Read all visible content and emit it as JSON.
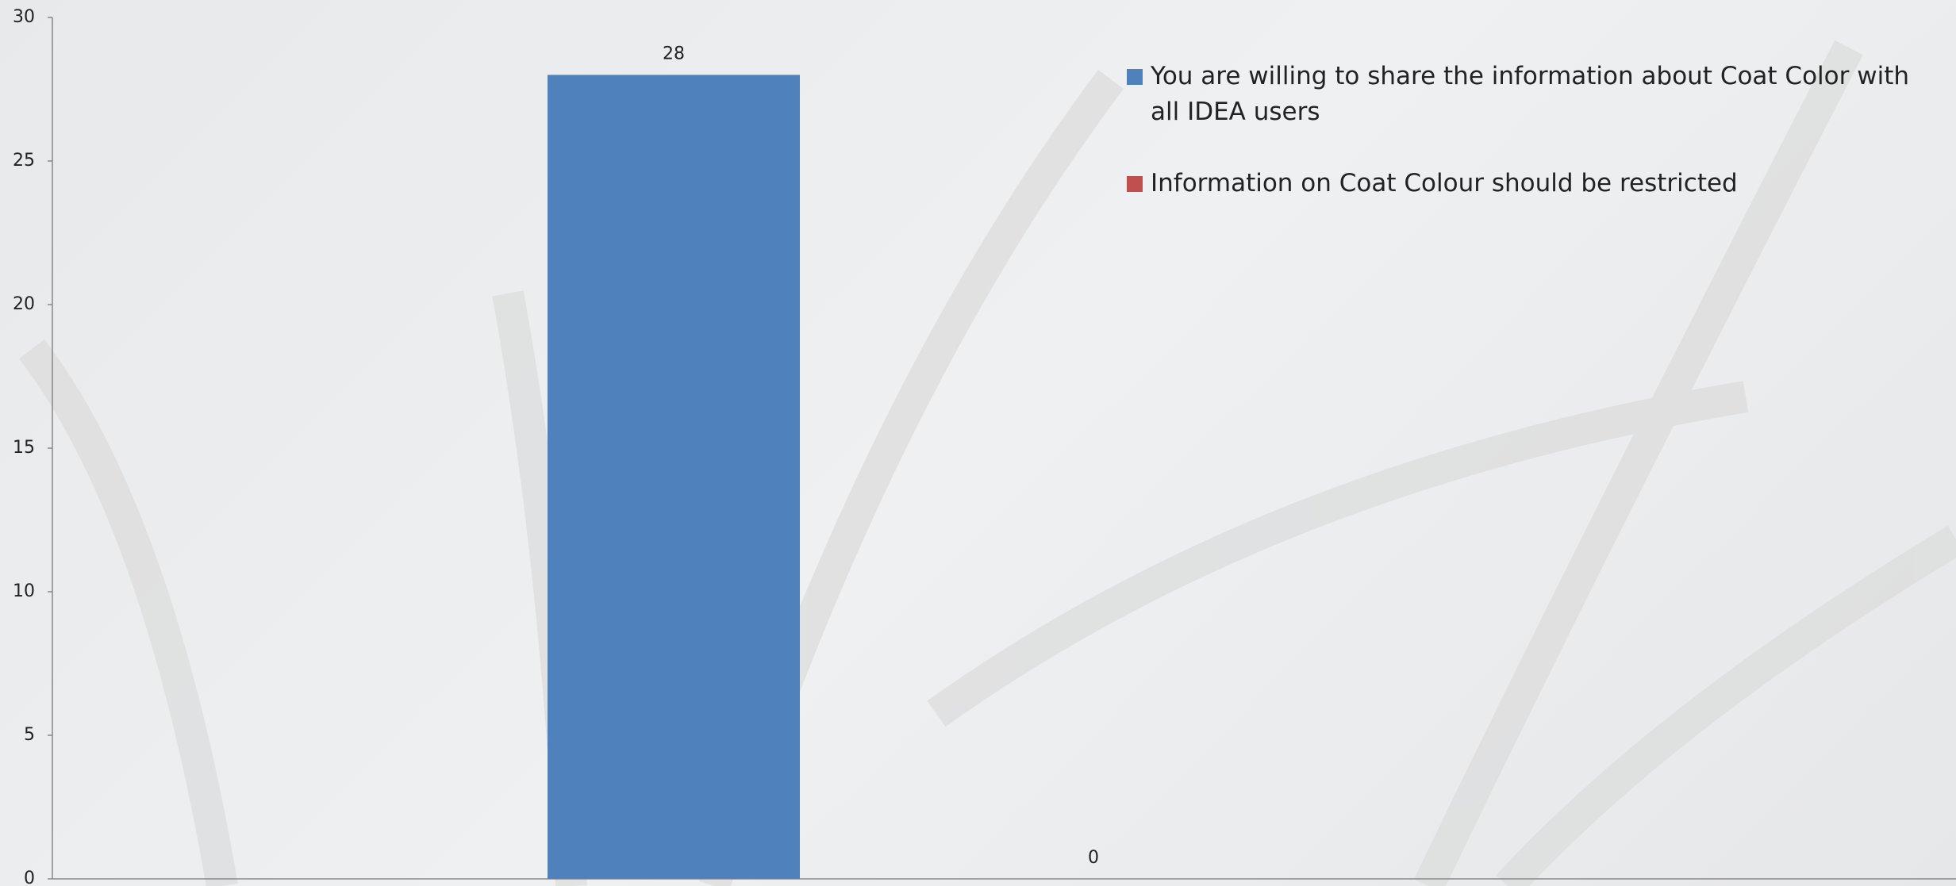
{
  "chart_data": {
    "type": "bar",
    "categories": [
      null
    ],
    "series": [
      {
        "name": "You are willing to share the information about Coat Color with all IDEA users",
        "color": "#4f81bd",
        "values": [
          28
        ]
      },
      {
        "name": "Information on Coat Colour should be restricted",
        "color": "#c0504d",
        "values": [
          0
        ]
      }
    ],
    "ylim": [
      0,
      30
    ],
    "yticks": [
      0,
      5,
      10,
      15,
      20,
      25,
      30
    ]
  }
}
